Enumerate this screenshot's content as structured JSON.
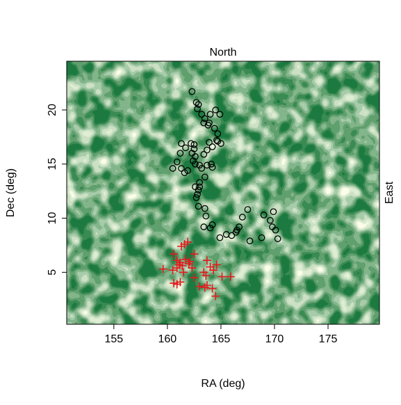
{
  "chart_data": {
    "type": "scatter",
    "top_label": "North",
    "right_label": "East",
    "xlabel": "RA (deg)",
    "ylabel": "Dec (deg)",
    "xlim": [
      150.6,
      179.8
    ],
    "ylim": [
      0.2,
      24.5
    ],
    "xticks": [
      155,
      160,
      165,
      170,
      175
    ],
    "yticks": [
      5,
      10,
      15,
      20
    ],
    "grid": false,
    "background": {
      "kind": "filled-density-contours",
      "colors": [
        "#ffffff",
        "#f7fcd5",
        "#d9f0a3",
        "#a1d99b",
        "#74c476",
        "#41ab5d",
        "#238b45",
        "#1a6b38"
      ]
    },
    "series": [
      {
        "marker": "open-circle",
        "color": "#000000",
        "x": [
          162.3,
          162.7,
          162.9,
          162.8,
          163.2,
          163.5,
          163.4,
          163.8,
          163.9,
          164.0,
          164.5,
          164.9,
          164.4,
          164.7,
          164.6,
          165.0,
          164.7,
          163.9,
          164.2,
          163.7,
          163.4,
          162.2,
          162.5,
          162.3,
          162.6,
          162.4,
          162.6,
          162.5,
          161.7,
          161.3,
          161.2,
          160.9,
          160.5,
          161.3,
          161.6,
          161.9,
          163.0,
          163.2,
          163.7,
          164.1,
          164.2,
          163.5,
          163.0,
          162.6,
          162.9,
          162.8,
          163.0,
          162.7,
          162.9,
          163.5,
          163.6,
          163.4,
          164.0,
          164.2,
          164.9,
          165.5,
          166.0,
          166.4,
          166.5,
          166.7,
          167.0,
          167.5,
          167.7,
          168.8,
          169.0,
          169.6,
          169.8,
          170.1,
          170.3,
          169.9
        ],
        "y": [
          21.7,
          20.7,
          20.5,
          20.1,
          19.6,
          19.2,
          18.8,
          18.6,
          18.8,
          19.6,
          20.0,
          19.6,
          18.3,
          17.8,
          17.2,
          16.9,
          17.1,
          17.0,
          16.6,
          16.3,
          15.9,
          16.9,
          16.4,
          16.0,
          15.7,
          15.3,
          15.0,
          16.8,
          16.5,
          16.9,
          16.0,
          15.2,
          14.6,
          14.6,
          14.2,
          14.4,
          14.9,
          14.6,
          14.9,
          15.0,
          14.7,
          13.8,
          13.3,
          12.9,
          12.6,
          12.2,
          12.9,
          11.9,
          11.1,
          10.9,
          10.2,
          9.2,
          9.1,
          9.4,
          8.2,
          8.5,
          8.4,
          8.7,
          8.9,
          9.2,
          10.1,
          10.8,
          7.9,
          8.2,
          10.3,
          9.8,
          9.2,
          8.9,
          8.1,
          10.6
        ]
      },
      {
        "marker": "plus",
        "color": "#e41a1c",
        "x": [
          161.3,
          161.6,
          161.9,
          160.6,
          161.7,
          162.5,
          162.1,
          161.2,
          161.1,
          160.9,
          161.4,
          162.0,
          162.3,
          163.7,
          164.0,
          164.6,
          163.4,
          163.6,
          164.3,
          159.6,
          160.5,
          160.9,
          161.5,
          162.5,
          165.1,
          165.9,
          163.0,
          163.7,
          164.2,
          164.5,
          163.5,
          160.6,
          160.9,
          161.2
        ],
        "y": [
          7.4,
          7.6,
          7.8,
          6.7,
          6.2,
          6.7,
          6.0,
          5.9,
          5.7,
          6.1,
          5.6,
          5.8,
          5.4,
          6.1,
          5.5,
          5.7,
          5.0,
          4.7,
          5.2,
          5.3,
          5.2,
          5.4,
          5.0,
          4.5,
          4.6,
          4.6,
          3.7,
          3.8,
          3.5,
          2.8,
          3.6,
          4.0,
          3.9,
          4.1
        ]
      }
    ]
  }
}
